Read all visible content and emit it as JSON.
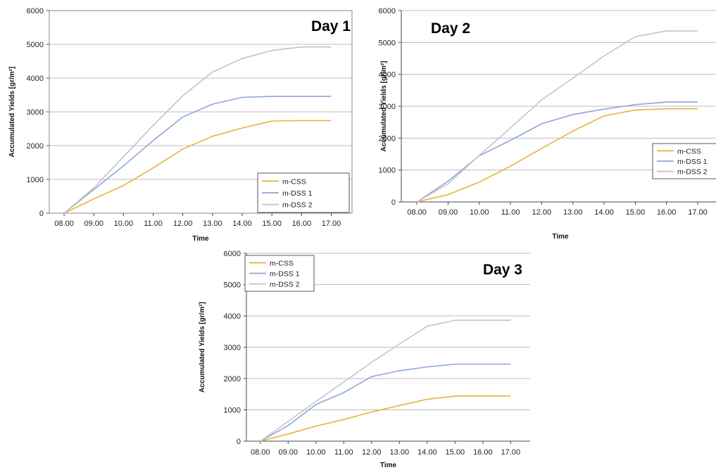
{
  "colors": {
    "m-CSS": "#E8B33A",
    "m-DSS 1": "#8EA6D9",
    "m-DSS 2": "#C4C4C4",
    "grid": "#BDBDBD",
    "axis": "#444444"
  },
  "chart_data": [
    {
      "type": "line",
      "title": "Day 1",
      "xlabel": "Time",
      "ylabel": "Accumulated Yields [gr/m²]",
      "categories": [
        "08.00",
        "09.00",
        "10.00",
        "11.00",
        "12.00",
        "13.00",
        "14.00",
        "15.00",
        "16.00",
        "17.00"
      ],
      "ylim": [
        0,
        6000
      ],
      "yticks": [
        0,
        1000,
        2000,
        3000,
        4000,
        5000,
        6000
      ],
      "grid": true,
      "legend": "bottom-right",
      "series": [
        {
          "name": "m-CSS",
          "values": [
            0,
            420,
            820,
            1340,
            1900,
            2280,
            2520,
            2730,
            2740,
            2740
          ]
        },
        {
          "name": "m-DSS 1",
          "values": [
            0,
            700,
            1400,
            2150,
            2850,
            3230,
            3430,
            3460,
            3460,
            3460
          ]
        },
        {
          "name": "m-DSS 2",
          "values": [
            0,
            750,
            1670,
            2600,
            3480,
            4180,
            4580,
            4820,
            4920,
            4920
          ]
        }
      ]
    },
    {
      "type": "line",
      "title": "Day 2",
      "xlabel": "Time",
      "ylabel": "Accumulated Yields [gr/m²]",
      "categories": [
        "08.00",
        "09.00",
        "10.00",
        "11.00",
        "12.00",
        "13.00",
        "14.00",
        "15.00",
        "16.00",
        "17.00"
      ],
      "ylim": [
        0,
        6000
      ],
      "yticks": [
        0,
        1000,
        2000,
        3000,
        4000,
        5000,
        6000
      ],
      "grid": true,
      "legend": "right",
      "series": [
        {
          "name": "m-CSS",
          "values": [
            0,
            230,
            620,
            1120,
            1680,
            2220,
            2700,
            2880,
            2920,
            2920
          ]
        },
        {
          "name": "m-DSS 1",
          "values": [
            0,
            650,
            1450,
            1930,
            2450,
            2740,
            2910,
            3050,
            3130,
            3130
          ]
        },
        {
          "name": "m-DSS 2",
          "values": [
            0,
            570,
            1460,
            2320,
            3200,
            3880,
            4580,
            5180,
            5360,
            5360
          ]
        }
      ]
    },
    {
      "type": "line",
      "title": "Day 3",
      "xlabel": "Time",
      "ylabel": "Accumulated Yields [gr/m²]",
      "categories": [
        "08.00",
        "09.00",
        "10.00",
        "11.00",
        "12.00",
        "13.00",
        "14.00",
        "15.00",
        "16.00",
        "17.00"
      ],
      "ylim": [
        0,
        6000
      ],
      "yticks": [
        0,
        1000,
        2000,
        3000,
        4000,
        5000,
        6000
      ],
      "grid": true,
      "legend": "top-left",
      "series": [
        {
          "name": "m-CSS",
          "values": [
            0,
            230,
            480,
            690,
            930,
            1140,
            1340,
            1440,
            1440,
            1440
          ]
        },
        {
          "name": "m-DSS 1",
          "values": [
            0,
            500,
            1170,
            1550,
            2060,
            2250,
            2370,
            2460,
            2460,
            2460
          ]
        },
        {
          "name": "m-DSS 2",
          "values": [
            0,
            630,
            1270,
            1890,
            2520,
            3100,
            3670,
            3860,
            3860,
            3860
          ]
        }
      ]
    }
  ]
}
